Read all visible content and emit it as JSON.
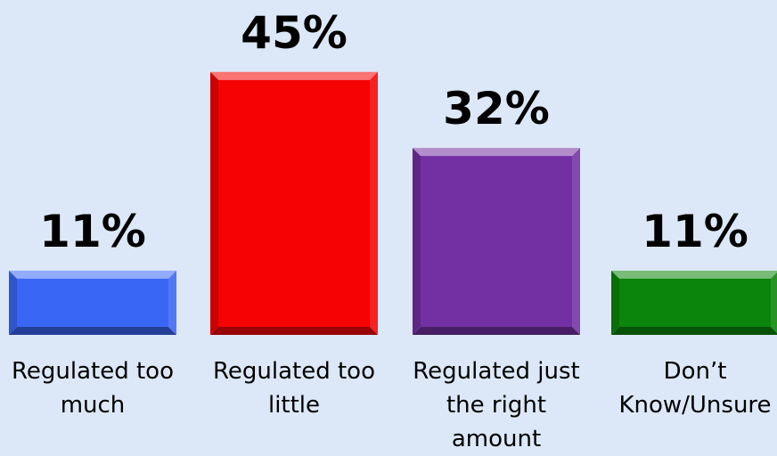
{
  "chart_data": {
    "type": "bar",
    "categories": [
      "Regulated too\nmuch",
      "Regulated too\nlittle",
      "Regulated just\nthe right amount",
      "Don’t\nKnow/Unsure"
    ],
    "values": [
      11,
      45,
      32,
      11
    ],
    "value_labels": [
      "11%",
      "45%",
      "32%",
      "11%"
    ],
    "colors": [
      "#3a66f5",
      "#f50303",
      "#7330a3",
      "#0b850b"
    ],
    "grid": false,
    "legend": "none"
  }
}
